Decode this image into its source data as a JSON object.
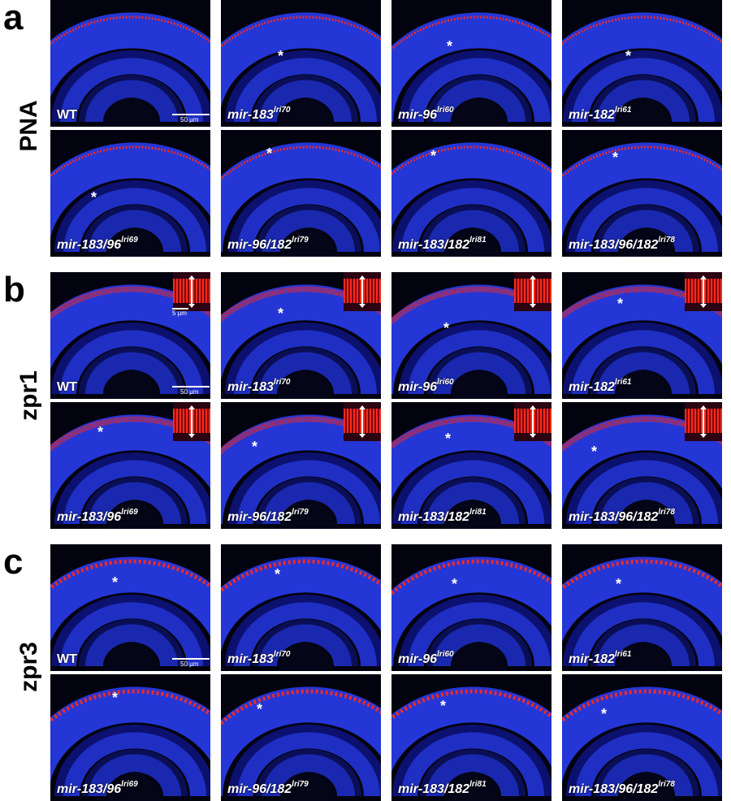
{
  "panels": [
    {
      "letter": "a",
      "stain": "PNA",
      "rows": [
        [
          {
            "genotype": "WT",
            "allele": "",
            "asterisk": false,
            "scale": "50 µm"
          },
          {
            "genotype": "mir-183",
            "allele": "lri70",
            "asterisk": true
          },
          {
            "genotype": "mir-96",
            "allele": "lri60",
            "asterisk": true
          },
          {
            "genotype": "mir-182",
            "allele": "lri61",
            "asterisk": true
          }
        ],
        [
          {
            "genotype": "mir-183/96",
            "allele": "lri69",
            "asterisk": true
          },
          {
            "genotype": "mir-96/182",
            "allele": "lri79",
            "asterisk": true
          },
          {
            "genotype": "mir-183/182",
            "allele": "lri81",
            "asterisk": true
          },
          {
            "genotype": "mir-183/96/182",
            "allele": "lri78",
            "asterisk": true
          }
        ]
      ]
    },
    {
      "letter": "b",
      "stain": "zpr1",
      "inset_scale": "5 µm",
      "rows": [
        [
          {
            "genotype": "WT",
            "allele": "",
            "asterisk": false,
            "scale": "50 µm"
          },
          {
            "genotype": "mir-183",
            "allele": "lri70",
            "asterisk": true
          },
          {
            "genotype": "mir-96",
            "allele": "lri60",
            "asterisk": true
          },
          {
            "genotype": "mir-182",
            "allele": "lri61",
            "asterisk": true
          }
        ],
        [
          {
            "genotype": "mir-183/96",
            "allele": "lri69",
            "asterisk": true
          },
          {
            "genotype": "mir-96/182",
            "allele": "lri79",
            "asterisk": true
          },
          {
            "genotype": "mir-183/182",
            "allele": "lri81",
            "asterisk": true
          },
          {
            "genotype": "mir-183/96/182",
            "allele": "lri78",
            "asterisk": true
          }
        ]
      ]
    },
    {
      "letter": "c",
      "stain": "zpr3",
      "rows": [
        [
          {
            "genotype": "WT",
            "allele": "",
            "asterisk": true,
            "scale": "50 µm"
          },
          {
            "genotype": "mir-183",
            "allele": "lri70",
            "asterisk": true
          },
          {
            "genotype": "mir-96",
            "allele": "lri60",
            "asterisk": true
          },
          {
            "genotype": "mir-182",
            "allele": "lri61",
            "asterisk": true
          }
        ],
        [
          {
            "genotype": "mir-183/96",
            "allele": "lri69",
            "asterisk": true
          },
          {
            "genotype": "mir-96/182",
            "allele": "lri79",
            "asterisk": true
          },
          {
            "genotype": "mir-183/182",
            "allele": "lri81",
            "asterisk": true
          },
          {
            "genotype": "mir-183/96/182",
            "allele": "lri78",
            "asterisk": true
          }
        ]
      ]
    }
  ],
  "asterisk_symbol": "*",
  "colors": {
    "nuclei": "#1f2fd0",
    "stain": "#ff2a1a",
    "background": "#03030f"
  }
}
